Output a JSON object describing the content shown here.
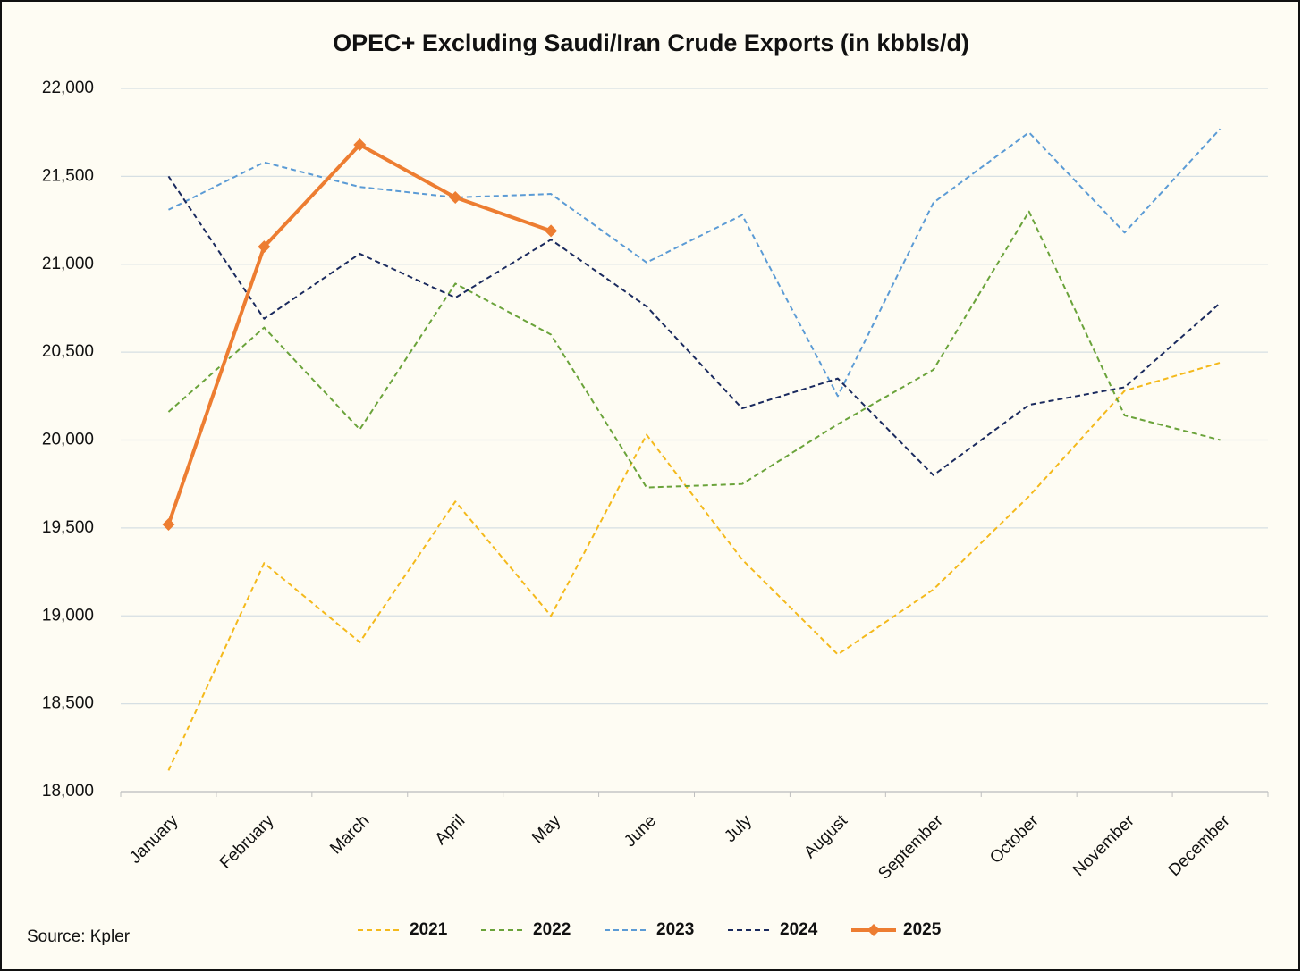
{
  "chart_data": {
    "type": "line",
    "title": "OPEC+ Excluding Saudi/Iran Crude Exports (in kbbls/d)",
    "source": "Source: Kpler",
    "categories": [
      "January",
      "February",
      "March",
      "April",
      "May",
      "June",
      "July",
      "August",
      "September",
      "October",
      "November",
      "December"
    ],
    "series": [
      {
        "name": "2021",
        "color": "#f4b91b",
        "style": "dashed",
        "values": [
          18120,
          19300,
          18850,
          19650,
          19000,
          20030,
          19320,
          18780,
          19150,
          19680,
          20280,
          20440
        ]
      },
      {
        "name": "2022",
        "color": "#6aa33a",
        "style": "dashed",
        "values": [
          20160,
          20640,
          20060,
          20890,
          20600,
          19730,
          19750,
          20090,
          20400,
          21300,
          20140,
          20000
        ]
      },
      {
        "name": "2023",
        "color": "#5b9bd5",
        "style": "dashed",
        "values": [
          21310,
          21580,
          21440,
          21380,
          21400,
          21010,
          21280,
          20250,
          21350,
          21750,
          21180,
          21770
        ]
      },
      {
        "name": "2024",
        "color": "#1a2a5e",
        "style": "dashed",
        "values": [
          21500,
          20690,
          21060,
          20810,
          21140,
          20760,
          20180,
          20350,
          19800,
          20200,
          20300,
          20780
        ]
      },
      {
        "name": "2025",
        "color": "#ed7d31",
        "style": "solid",
        "marker": "diamond",
        "values": [
          19520,
          21100,
          21680,
          21380,
          21190,
          null,
          null,
          null,
          null,
          null,
          null,
          null
        ]
      }
    ],
    "ylim": [
      18000,
      22000
    ],
    "yticks": [
      {
        "value": 18000,
        "label": "18,000"
      },
      {
        "value": 18500,
        "label": "18,500"
      },
      {
        "value": 19000,
        "label": "19,000"
      },
      {
        "value": 19500,
        "label": "19,500"
      },
      {
        "value": 20000,
        "label": "20,000"
      },
      {
        "value": 20500,
        "label": "20,500"
      },
      {
        "value": 21000,
        "label": "21,000"
      },
      {
        "value": 21500,
        "label": "21,500"
      },
      {
        "value": 22000,
        "label": "22,000"
      }
    ],
    "grid": true,
    "legend": "bottom"
  }
}
